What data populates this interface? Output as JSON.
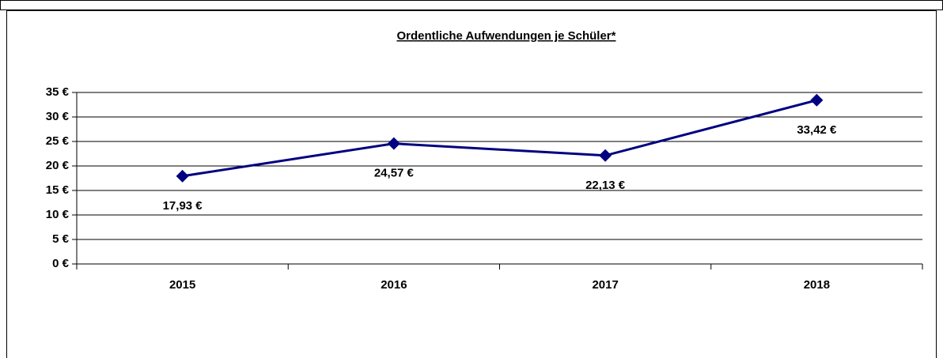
{
  "chart_data": {
    "type": "line",
    "title": "Ordentliche Aufwendungen je Schüler*",
    "categories": [
      "2015",
      "2016",
      "2017",
      "2018"
    ],
    "series": [
      {
        "name": "Ordentliche Aufwendungen je Schüler",
        "color": "#000080",
        "values": [
          17.93,
          24.57,
          22.13,
          33.42
        ],
        "value_labels": [
          "17,93 €",
          "24,57 €",
          "22,13 €",
          "33,42 €"
        ]
      }
    ],
    "ylim": [
      0,
      35
    ],
    "yticks": [
      {
        "value": 0,
        "label": "0 €"
      },
      {
        "value": 5,
        "label": "5 €"
      },
      {
        "value": 10,
        "label": "10 €"
      },
      {
        "value": 15,
        "label": "15 €"
      },
      {
        "value": 20,
        "label": "20 €"
      },
      {
        "value": 25,
        "label": "25 €"
      },
      {
        "value": 30,
        "label": "30 €"
      },
      {
        "value": 35,
        "label": "35 €"
      }
    ],
    "grid": true
  }
}
